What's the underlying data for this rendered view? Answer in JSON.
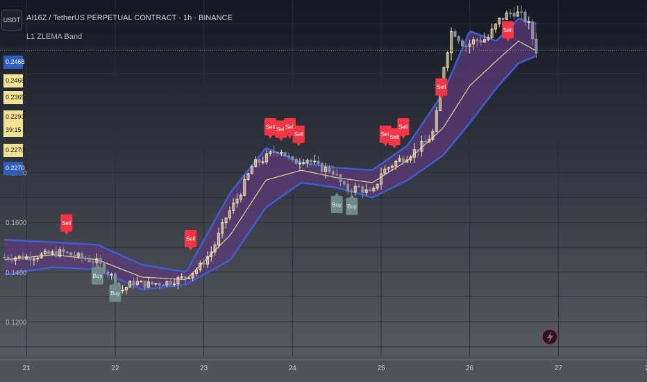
{
  "symbol_title": "AI16Z / TetherUS PERPETUAL CONTRACT · 1h · BINANCE",
  "indicator_name": "L1 ZLEMA Band",
  "currency_button": "USDT",
  "price_labels": [
    {
      "text": "0.2468",
      "bg": "#2f5fbd",
      "fg": "#ffffff"
    },
    {
      "text": "0.2468",
      "bg": "#f3e391",
      "fg": "#131722"
    },
    {
      "text": "0.2369",
      "bg": "#f3e391",
      "fg": "#131722"
    },
    {
      "text": "0.2293",
      "bg": "#f3e391",
      "fg": "#131722"
    },
    {
      "text": "39:15",
      "bg": "#f3e391",
      "fg": "#131722"
    },
    {
      "text": "0.2270",
      "bg": "#f3e391",
      "fg": "#131722"
    },
    {
      "text": "0.2270",
      "bg": "#2f5fbd",
      "fg": "#ffffff"
    }
  ],
  "colors": {
    "band_fill": "#5c3a7a",
    "band_edge": "#3d5fd1",
    "midline": "#e6d58a",
    "candle_up": "#f5e6b0",
    "candle_down": "#8a8f9c",
    "sell": "#f23645",
    "buy": "#6f8a8a",
    "axis_text": "#b2b5be",
    "current_price_line": "#8a8f9c"
  },
  "chart_data": {
    "type": "candlestick",
    "title": "AI16Z / TetherUS PERPETUAL CONTRACT · 1h · BINANCE",
    "indicator": "L1 ZLEMA Band",
    "x_ticks": [
      {
        "label": "21",
        "t": 21
      },
      {
        "label": "22",
        "t": 22
      },
      {
        "label": "23",
        "t": 23
      },
      {
        "label": "24",
        "t": 24
      },
      {
        "label": "25",
        "t": 25
      },
      {
        "label": "26",
        "t": 26
      },
      {
        "label": "27",
        "t": 27
      },
      {
        "label": "2",
        "t": 28
      }
    ],
    "y_ticks": [
      {
        "label": "0.1200",
        "v": 0.12
      },
      {
        "label": "0.1400",
        "v": 0.14
      },
      {
        "label": "0.1600",
        "v": 0.16
      },
      {
        "label": "0.1800",
        "v": 0.18
      }
    ],
    "xlim": [
      20.7,
      28.0
    ],
    "ylim": [
      0.1064,
      0.2495
    ],
    "current_price": 0.2293,
    "close_path": [
      [
        20.75,
        0.146
      ],
      [
        21.0,
        0.146
      ],
      [
        21.2,
        0.147
      ],
      [
        21.4,
        0.148
      ],
      [
        21.6,
        0.146
      ],
      [
        21.8,
        0.144
      ],
      [
        22.0,
        0.137
      ],
      [
        22.05,
        0.132
      ],
      [
        22.2,
        0.136
      ],
      [
        22.35,
        0.135
      ],
      [
        22.6,
        0.136
      ],
      [
        22.8,
        0.138
      ],
      [
        22.95,
        0.142
      ],
      [
        23.1,
        0.149
      ],
      [
        23.25,
        0.162
      ],
      [
        23.4,
        0.171
      ],
      [
        23.55,
        0.183
      ],
      [
        23.7,
        0.186
      ],
      [
        23.85,
        0.19
      ],
      [
        24.0,
        0.184
      ],
      [
        24.15,
        0.186
      ],
      [
        24.3,
        0.182
      ],
      [
        24.45,
        0.181
      ],
      [
        24.6,
        0.173
      ],
      [
        24.75,
        0.174
      ],
      [
        24.9,
        0.171
      ],
      [
        25.0,
        0.18
      ],
      [
        25.15,
        0.184
      ],
      [
        25.35,
        0.188
      ],
      [
        25.5,
        0.192
      ],
      [
        25.6,
        0.197
      ],
      [
        25.7,
        0.222
      ],
      [
        25.8,
        0.238
      ],
      [
        25.95,
        0.231
      ],
      [
        26.05,
        0.233
      ],
      [
        26.2,
        0.234
      ],
      [
        26.35,
        0.242
      ],
      [
        26.5,
        0.245
      ],
      [
        26.65,
        0.241
      ],
      [
        26.75,
        0.2293
      ]
    ],
    "band": {
      "mid": [
        [
          20.75,
          0.145
        ],
        [
          21.3,
          0.147
        ],
        [
          21.8,
          0.145
        ],
        [
          22.3,
          0.138
        ],
        [
          22.8,
          0.137
        ],
        [
          23.3,
          0.155
        ],
        [
          23.7,
          0.177
        ],
        [
          24.1,
          0.181
        ],
        [
          24.5,
          0.178
        ],
        [
          24.9,
          0.176
        ],
        [
          25.3,
          0.185
        ],
        [
          25.7,
          0.198
        ],
        [
          26.0,
          0.215
        ],
        [
          26.3,
          0.225
        ],
        [
          26.55,
          0.233
        ],
        [
          26.75,
          0.229
        ]
      ],
      "upper": [
        [
          20.75,
          0.153
        ],
        [
          21.3,
          0.152
        ],
        [
          21.8,
          0.151
        ],
        [
          22.3,
          0.143
        ],
        [
          22.8,
          0.14
        ],
        [
          23.3,
          0.172
        ],
        [
          23.7,
          0.19
        ],
        [
          24.1,
          0.184
        ],
        [
          24.5,
          0.182
        ],
        [
          24.9,
          0.181
        ],
        [
          25.3,
          0.191
        ],
        [
          25.7,
          0.212
        ],
        [
          26.0,
          0.237
        ],
        [
          26.3,
          0.233
        ],
        [
          26.55,
          0.242
        ],
        [
          26.75,
          0.24
        ]
      ],
      "lower": [
        [
          20.75,
          0.139
        ],
        [
          21.3,
          0.142
        ],
        [
          21.8,
          0.141
        ],
        [
          22.3,
          0.133
        ],
        [
          22.8,
          0.135
        ],
        [
          23.3,
          0.145
        ],
        [
          23.7,
          0.166
        ],
        [
          24.1,
          0.176
        ],
        [
          24.5,
          0.174
        ],
        [
          24.9,
          0.17
        ],
        [
          25.3,
          0.177
        ],
        [
          25.7,
          0.187
        ],
        [
          26.0,
          0.2
        ],
        [
          26.3,
          0.214
        ],
        [
          26.55,
          0.224
        ],
        [
          26.75,
          0.227
        ]
      ]
    },
    "signals": [
      {
        "type": "sell",
        "label": "Sell",
        "t": 21.45,
        "price": 0.1598
      },
      {
        "type": "buy",
        "label": "Buy",
        "t": 21.8,
        "price": 0.1385
      },
      {
        "type": "buy",
        "label": "Buy",
        "t": 22.0,
        "price": 0.1315
      },
      {
        "type": "sell",
        "label": "Sell",
        "t": 22.85,
        "price": 0.1535
      },
      {
        "type": "sell",
        "label": "Sell",
        "t": 23.75,
        "price": 0.1985
      },
      {
        "type": "sell",
        "label": "Sell",
        "t": 23.87,
        "price": 0.1975
      },
      {
        "type": "sell",
        "label": "Sell",
        "t": 23.97,
        "price": 0.1985
      },
      {
        "type": "sell",
        "label": "Sell",
        "t": 24.07,
        "price": 0.1955
      },
      {
        "type": "buy",
        "label": "Buy",
        "t": 24.5,
        "price": 0.1672
      },
      {
        "type": "buy",
        "label": "Buy",
        "t": 24.67,
        "price": 0.1665
      },
      {
        "type": "sell",
        "label": "Sell",
        "t": 25.05,
        "price": 0.1955
      },
      {
        "type": "sell",
        "label": "Sell",
        "t": 25.15,
        "price": 0.1945
      },
      {
        "type": "sell",
        "label": "Sell",
        "t": 25.25,
        "price": 0.1985
      },
      {
        "type": "sell",
        "label": "Sell",
        "t": 25.68,
        "price": 0.2145
      },
      {
        "type": "sell",
        "label": "Sell",
        "t": 26.43,
        "price": 0.2375
      }
    ]
  }
}
